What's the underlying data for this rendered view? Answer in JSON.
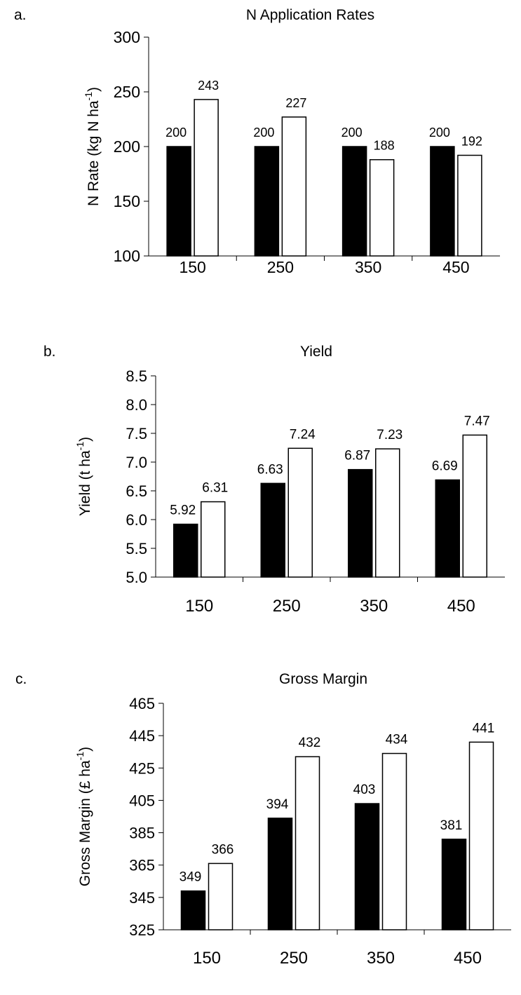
{
  "chart_data": [
    {
      "type": "bar",
      "panel_letter": "a.",
      "title": "N Application Rates",
      "ylabel": "N Rate (kg N ha",
      "ylabel_suffix": ")",
      "ylabel_superscript": "-1",
      "xlabel": "",
      "categories": [
        "150",
        "250",
        "350",
        "450"
      ],
      "yticks": [
        "100",
        "150",
        "200",
        "250",
        "300"
      ],
      "ylim": [
        100,
        300
      ],
      "series": [
        {
          "fill": "#000000",
          "values": [
            200,
            200,
            200,
            200
          ],
          "labels": [
            "200",
            "200",
            "200",
            "200"
          ]
        },
        {
          "fill": "#ffffff",
          "values": [
            243,
            227,
            188,
            192
          ],
          "labels": [
            "243",
            "227",
            "188",
            "192"
          ]
        }
      ],
      "grid": false,
      "legend": "none"
    },
    {
      "type": "bar",
      "panel_letter": "b.",
      "title": "Yield",
      "ylabel": "Yield (t ha",
      "ylabel_suffix": ")",
      "ylabel_superscript": "-1",
      "xlabel": "",
      "categories": [
        "150",
        "250",
        "350",
        "450"
      ],
      "yticks": [
        "5.0",
        "5.5",
        "6.0",
        "6.5",
        "7.0",
        "7.5",
        "8.0",
        "8.5"
      ],
      "ylim": [
        5.0,
        8.5
      ],
      "series": [
        {
          "fill": "#000000",
          "values": [
            5.92,
            6.63,
            6.87,
            6.69
          ],
          "labels": [
            "5.92",
            "6.63",
            "6.87",
            "6.69"
          ]
        },
        {
          "fill": "#ffffff",
          "values": [
            6.31,
            7.24,
            7.23,
            7.47
          ],
          "labels": [
            "6.31",
            "7.24",
            "7.23",
            "7.47"
          ]
        }
      ],
      "grid": false,
      "legend": "none"
    },
    {
      "type": "bar",
      "panel_letter": "c.",
      "title": "Gross Margin",
      "ylabel": "Gross Margin (£ ha",
      "ylabel_suffix": ")",
      "ylabel_superscript": "-1",
      "xlabel": "",
      "categories": [
        "150",
        "250",
        "350",
        "450"
      ],
      "yticks": [
        "325",
        "345",
        "365",
        "385",
        "405",
        "425",
        "445",
        "465"
      ],
      "ylim": [
        325,
        465
      ],
      "series": [
        {
          "fill": "#000000",
          "values": [
            349,
            394,
            403,
            381
          ],
          "labels": [
            "349",
            "394",
            "403",
            "381"
          ]
        },
        {
          "fill": "#ffffff",
          "values": [
            366,
            432,
            434,
            441
          ],
          "labels": [
            "366",
            "432",
            "434",
            "441"
          ]
        }
      ],
      "grid": false,
      "legend": "none"
    }
  ]
}
